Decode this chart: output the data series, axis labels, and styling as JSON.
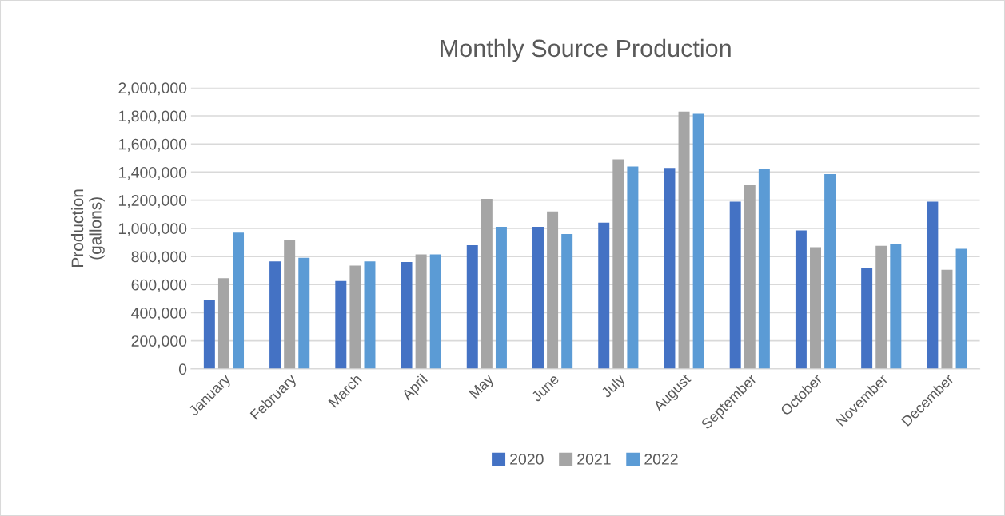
{
  "chart_data": {
    "type": "bar",
    "title": "Monthly Source Production",
    "ylabel": "Production\n(gallons)",
    "categories": [
      "January",
      "February",
      "March",
      "April",
      "May",
      "June",
      "July",
      "August",
      "September",
      "October",
      "November",
      "December"
    ],
    "series": [
      {
        "name": "2020",
        "color": "#4472c4",
        "values": [
          490000,
          765000,
          625000,
          760000,
          880000,
          1010000,
          1040000,
          1430000,
          1190000,
          985000,
          715000,
          1190000
        ]
      },
      {
        "name": "2021",
        "color": "#a5a5a5",
        "values": [
          645000,
          920000,
          735000,
          815000,
          1210000,
          1120000,
          1490000,
          1830000,
          1310000,
          865000,
          875000,
          705000
        ]
      },
      {
        "name": "2022",
        "color": "#5b9bd5",
        "values": [
          970000,
          790000,
          765000,
          815000,
          1010000,
          960000,
          1440000,
          1815000,
          1425000,
          1385000,
          890000,
          855000
        ]
      }
    ],
    "ylim": [
      0,
      2000000
    ],
    "yticks": [
      {
        "value": 0,
        "label": "0"
      },
      {
        "value": 200000,
        "label": "200,000"
      },
      {
        "value": 400000,
        "label": "400,000"
      },
      {
        "value": 600000,
        "label": "600,000"
      },
      {
        "value": 800000,
        "label": "800,000"
      },
      {
        "value": 1000000,
        "label": "1,000,000"
      },
      {
        "value": 1200000,
        "label": "1,200,000"
      },
      {
        "value": 1400000,
        "label": "1,400,000"
      },
      {
        "value": 1600000,
        "label": "1,600,000"
      },
      {
        "value": 1800000,
        "label": "1,800,000"
      },
      {
        "value": 2000000,
        "label": "2,000,000"
      }
    ],
    "grid": "y",
    "legend": "bottom"
  }
}
